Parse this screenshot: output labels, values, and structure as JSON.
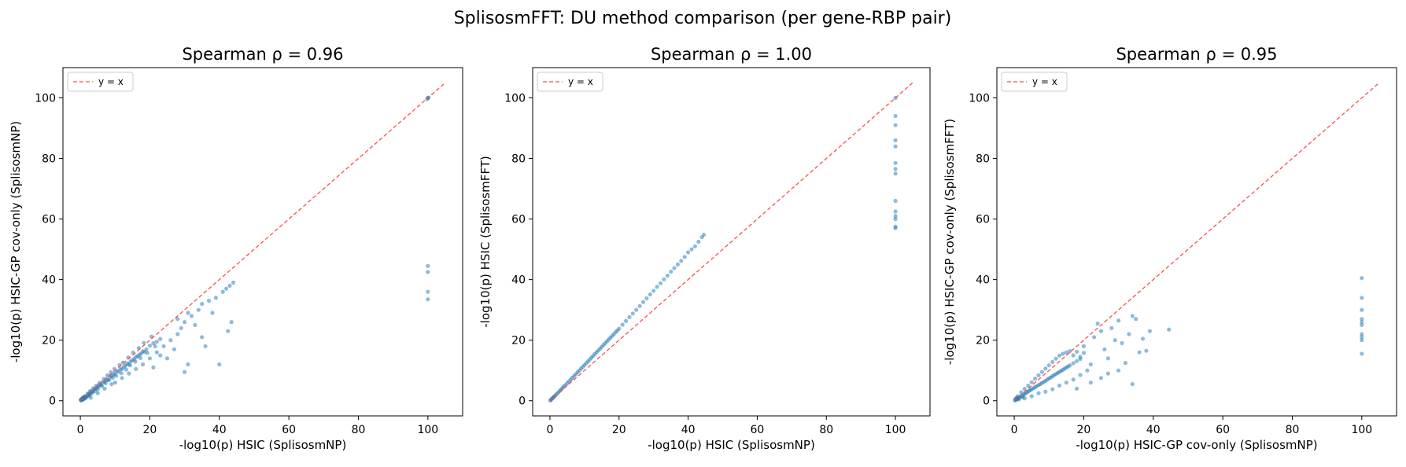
{
  "figure": {
    "suptitle": "SplisosmFFT: DU method comparison (per gene-RBP pair)"
  },
  "colors": {
    "points": "#1f77b4",
    "identity_line": "#ff4d4d",
    "axes": "#000000"
  },
  "chart_data": [
    {
      "type": "scatter",
      "title": "Spearman ρ = 0.96",
      "xlabel": "-log10(p)  HSIC (SplisosmNP)",
      "ylabel": "-log10(p)  HSIC-GP cov-only (SplisosmNP)",
      "xlim": [
        -5,
        110
      ],
      "ylim": [
        -5,
        110
      ],
      "xticks": [
        0,
        20,
        40,
        60,
        80,
        100
      ],
      "yticks": [
        0,
        20,
        40,
        60,
        80,
        100
      ],
      "legend": {
        "label": "y = x",
        "position": "upper-left"
      },
      "reference_line": {
        "from": [
          0,
          0
        ],
        "to": [
          105,
          105
        ]
      },
      "grid": false,
      "points": [
        [
          0.2,
          0.1
        ],
        [
          0.4,
          0.5
        ],
        [
          0.6,
          0.3
        ],
        [
          0.8,
          0.9
        ],
        [
          1.0,
          0.7
        ],
        [
          1.2,
          1.1
        ],
        [
          1.5,
          1.3
        ],
        [
          1.8,
          1.6
        ],
        [
          2.0,
          1.5
        ],
        [
          2.3,
          2.2
        ],
        [
          2.6,
          2.0
        ],
        [
          3.0,
          2.8
        ],
        [
          3.3,
          3.1
        ],
        [
          3.6,
          2.9
        ],
        [
          4.0,
          3.8
        ],
        [
          4.4,
          4.0
        ],
        [
          4.8,
          4.5
        ],
        [
          5.2,
          4.6
        ],
        [
          5.6,
          5.3
        ],
        [
          6.0,
          5.2
        ],
        [
          6.5,
          6.1
        ],
        [
          7.0,
          6.3
        ],
        [
          7.5,
          7.0
        ],
        [
          8.0,
          6.8
        ],
        [
          8.5,
          8.0
        ],
        [
          9.0,
          8.1
        ],
        [
          9.5,
          8.7
        ],
        [
          10.0,
          8.9
        ],
        [
          10.5,
          9.8
        ],
        [
          11.0,
          9.6
        ],
        [
          11.5,
          10.4
        ],
        [
          12.0,
          10.5
        ],
        [
          12.5,
          11.2
        ],
        [
          13.0,
          11.6
        ],
        [
          13.5,
          12.3
        ],
        [
          14.0,
          12.1
        ],
        [
          14.5,
          13.0
        ],
        [
          15.0,
          13.4
        ],
        [
          15.5,
          13.8
        ],
        [
          16.0,
          14.5
        ],
        [
          16.5,
          14.7
        ],
        [
          17.0,
          15.2
        ],
        [
          17.5,
          15.6
        ],
        [
          18.0,
          16.3
        ],
        [
          18.5,
          16.1
        ],
        [
          19.0,
          17.0
        ],
        [
          20.0,
          18.2
        ],
        [
          21.0,
          19.0
        ],
        [
          22.0,
          19.5
        ],
        [
          23.0,
          20.4
        ],
        [
          3.0,
          1.0
        ],
        [
          5.0,
          2.5
        ],
        [
          7.0,
          4.0
        ],
        [
          9.0,
          5.5
        ],
        [
          10.0,
          6.0
        ],
        [
          12.0,
          7.5
        ],
        [
          14.0,
          9.0
        ],
        [
          16.0,
          10.5
        ],
        [
          18.0,
          12.0
        ],
        [
          20.0,
          14.0
        ],
        [
          21.0,
          11.0
        ],
        [
          22.0,
          16.0
        ],
        [
          23.0,
          15.0
        ],
        [
          24.0,
          18.0
        ],
        [
          25.0,
          14.0
        ],
        [
          26.0,
          20.0
        ],
        [
          27.0,
          17.0
        ],
        [
          28.0,
          22.0
        ],
        [
          29.0,
          24.0
        ],
        [
          30.0,
          26.0
        ],
        [
          30.0,
          9.5
        ],
        [
          31.0,
          12.0
        ],
        [
          32.0,
          28.0
        ],
        [
          33.0,
          25.0
        ],
        [
          34.0,
          30.0
        ],
        [
          35.0,
          32.0
        ],
        [
          36.0,
          18.0
        ],
        [
          37.0,
          33.0
        ],
        [
          38.0,
          29.0
        ],
        [
          39.0,
          34.0
        ],
        [
          40.0,
          12.0
        ],
        [
          41.0,
          36.0
        ],
        [
          42.0,
          37.0
        ],
        [
          43.0,
          38.0
        ],
        [
          43.5,
          26.0
        ],
        [
          44.0,
          39.0
        ],
        [
          42.5,
          23.0
        ],
        [
          28.0,
          27.0
        ],
        [
          31.0,
          29.0
        ],
        [
          35.0,
          21.0
        ],
        [
          0.1,
          0.4
        ],
        [
          0.3,
          0.2
        ],
        [
          0.5,
          0.8
        ],
        [
          0.7,
          0.5
        ],
        [
          0.9,
          1.2
        ],
        [
          1.1,
          0.6
        ],
        [
          1.3,
          1.5
        ],
        [
          1.6,
          0.9
        ],
        [
          2.1,
          2.4
        ],
        [
          2.5,
          1.7
        ],
        [
          2.8,
          3.2
        ],
        [
          3.2,
          2.3
        ],
        [
          3.7,
          4.1
        ],
        [
          4.2,
          3.2
        ],
        [
          4.6,
          5.0
        ],
        [
          5.0,
          3.8
        ],
        [
          5.5,
          5.9
        ],
        [
          6.2,
          4.9
        ],
        [
          6.8,
          7.2
        ],
        [
          7.3,
          5.8
        ],
        [
          7.8,
          8.4
        ],
        [
          8.3,
          6.9
        ],
        [
          8.8,
          9.4
        ],
        [
          9.3,
          7.6
        ],
        [
          9.8,
          10.5
        ],
        [
          10.3,
          8.2
        ],
        [
          11.3,
          11.8
        ],
        [
          11.8,
          9.1
        ],
        [
          12.3,
          12.6
        ],
        [
          13.2,
          10.3
        ],
        [
          13.8,
          14.3
        ],
        [
          14.3,
          11.7
        ],
        [
          15.2,
          15.9
        ],
        [
          15.8,
          12.9
        ],
        [
          16.8,
          17.4
        ],
        [
          17.3,
          14.1
        ],
        [
          18.3,
          19.1
        ],
        [
          19.3,
          15.8
        ],
        [
          20.5,
          21.2
        ],
        [
          21.5,
          18.0
        ],
        [
          100,
          100
        ],
        [
          100,
          44.5
        ],
        [
          100,
          42.5
        ],
        [
          100,
          36.0
        ],
        [
          100,
          33.5
        ],
        [
          99.8,
          99.6
        ],
        [
          100.2,
          100.1
        ]
      ]
    },
    {
      "type": "scatter",
      "title": "Spearman ρ = 1.00",
      "xlabel": "-log10(p)  HSIC (SplisosmNP)",
      "ylabel": "-log10(p)  HSIC (SplisosmFFT)",
      "xlim": [
        -5,
        110
      ],
      "ylim": [
        -5,
        110
      ],
      "xticks": [
        0,
        20,
        40,
        60,
        80,
        100
      ],
      "yticks": [
        0,
        20,
        40,
        60,
        80,
        100
      ],
      "legend": {
        "label": "y = x",
        "position": "upper-left"
      },
      "reference_line": {
        "from": [
          0,
          0
        ],
        "to": [
          105,
          105
        ]
      },
      "grid": false,
      "points": [
        [
          0.1,
          0.1
        ],
        [
          0.3,
          0.3
        ],
        [
          0.5,
          0.6
        ],
        [
          0.8,
          0.9
        ],
        [
          1.0,
          1.1
        ],
        [
          1.3,
          1.5
        ],
        [
          1.6,
          1.8
        ],
        [
          2.0,
          2.3
        ],
        [
          2.4,
          2.7
        ],
        [
          2.8,
          3.2
        ],
        [
          3.2,
          3.7
        ],
        [
          3.6,
          4.2
        ],
        [
          4.0,
          4.7
        ],
        [
          4.5,
          5.2
        ],
        [
          5.0,
          5.8
        ],
        [
          5.5,
          6.4
        ],
        [
          6.0,
          7.0
        ],
        [
          6.5,
          7.6
        ],
        [
          7.0,
          8.2
        ],
        [
          7.5,
          8.8
        ],
        [
          8.0,
          9.4
        ],
        [
          8.5,
          10.0
        ],
        [
          9.0,
          10.6
        ],
        [
          9.5,
          11.2
        ],
        [
          10.0,
          11.8
        ],
        [
          10.5,
          12.4
        ],
        [
          11.0,
          13.0
        ],
        [
          11.5,
          13.6
        ],
        [
          12.0,
          14.2
        ],
        [
          12.5,
          14.8
        ],
        [
          13.0,
          15.4
        ],
        [
          13.5,
          16.0
        ],
        [
          14.0,
          16.6
        ],
        [
          14.5,
          17.2
        ],
        [
          15.0,
          17.8
        ],
        [
          15.5,
          18.4
        ],
        [
          16.0,
          19.0
        ],
        [
          16.5,
          19.6
        ],
        [
          17.0,
          20.2
        ],
        [
          17.5,
          20.8
        ],
        [
          18.0,
          21.4
        ],
        [
          18.5,
          22.0
        ],
        [
          19.0,
          22.6
        ],
        [
          19.5,
          23.2
        ],
        [
          20.0,
          23.8
        ],
        [
          21.0,
          25.1
        ],
        [
          22.0,
          26.3
        ],
        [
          23.0,
          27.6
        ],
        [
          24.0,
          28.8
        ],
        [
          25.0,
          30.0
        ],
        [
          26.0,
          31.3
        ],
        [
          27.0,
          32.6
        ],
        [
          28.0,
          33.8
        ],
        [
          29.0,
          35.1
        ],
        [
          30.0,
          36.3
        ],
        [
          31.0,
          37.6
        ],
        [
          32.0,
          38.8
        ],
        [
          33.0,
          40.1
        ],
        [
          34.0,
          41.3
        ],
        [
          35.0,
          42.6
        ],
        [
          36.0,
          43.8
        ],
        [
          37.0,
          45.0
        ],
        [
          38.0,
          46.2
        ],
        [
          39.0,
          47.5
        ],
        [
          40.0,
          49.0
        ],
        [
          41.0,
          50.0
        ],
        [
          42.0,
          51.0
        ],
        [
          43.0,
          52.5
        ],
        [
          44.0,
          54.0
        ],
        [
          44.5,
          54.8
        ],
        [
          100,
          100
        ],
        [
          100,
          94.0
        ],
        [
          100,
          91.0
        ],
        [
          100,
          86.0
        ],
        [
          100,
          84.0
        ],
        [
          100,
          78.5
        ],
        [
          100,
          76.5
        ],
        [
          100,
          75.0
        ],
        [
          100,
          66.0
        ],
        [
          100,
          62.5
        ],
        [
          100,
          61.0
        ],
        [
          100,
          60.0
        ],
        [
          100,
          57.5
        ],
        [
          100,
          57.0
        ]
      ]
    },
    {
      "type": "scatter",
      "title": "Spearman ρ = 0.95",
      "xlabel": "-log10(p)  HSIC-GP cov-only (SplisosmNP)",
      "ylabel": "-log10(p)  HSIC-GP cov-only (SplisosmFFT)",
      "xlim": [
        -5,
        110
      ],
      "ylim": [
        -5,
        110
      ],
      "xticks": [
        0,
        20,
        40,
        60,
        80,
        100
      ],
      "yticks": [
        0,
        20,
        40,
        60,
        80,
        100
      ],
      "legend": {
        "label": "y = x",
        "position": "upper-left"
      },
      "reference_line": {
        "from": [
          0,
          0
        ],
        "to": [
          105,
          105
        ]
      },
      "grid": false,
      "points": [
        [
          0.2,
          0.1
        ],
        [
          0.4,
          0.3
        ],
        [
          0.6,
          0.5
        ],
        [
          0.9,
          0.6
        ],
        [
          1.2,
          0.9
        ],
        [
          1.5,
          1.0
        ],
        [
          1.8,
          1.4
        ],
        [
          2.2,
          1.6
        ],
        [
          2.6,
          2.0
        ],
        [
          3.0,
          2.2
        ],
        [
          3.4,
          2.6
        ],
        [
          3.8,
          2.9
        ],
        [
          4.2,
          3.2
        ],
        [
          4.6,
          3.5
        ],
        [
          5.0,
          3.8
        ],
        [
          5.5,
          4.1
        ],
        [
          6.0,
          4.5
        ],
        [
          6.5,
          4.8
        ],
        [
          7.0,
          5.2
        ],
        [
          7.5,
          5.5
        ],
        [
          8.0,
          5.9
        ],
        [
          8.5,
          6.2
        ],
        [
          9.0,
          6.6
        ],
        [
          9.5,
          7.0
        ],
        [
          10.0,
          7.4
        ],
        [
          10.5,
          7.7
        ],
        [
          11.0,
          8.1
        ],
        [
          11.5,
          8.5
        ],
        [
          12.0,
          8.8
        ],
        [
          12.5,
          9.2
        ],
        [
          13.0,
          9.5
        ],
        [
          13.5,
          9.9
        ],
        [
          14.0,
          10.2
        ],
        [
          14.5,
          10.6
        ],
        [
          15.0,
          11.0
        ],
        [
          15.5,
          11.3
        ],
        [
          16.0,
          11.7
        ],
        [
          17.0,
          12.4
        ],
        [
          18.0,
          13.1
        ],
        [
          19.0,
          13.8
        ],
        [
          1.0,
          1.5
        ],
        [
          2.0,
          2.8
        ],
        [
          3.0,
          3.9
        ],
        [
          4.0,
          5.0
        ],
        [
          5.0,
          6.1
        ],
        [
          6.0,
          7.3
        ],
        [
          7.0,
          8.4
        ],
        [
          8.0,
          9.5
        ],
        [
          9.0,
          10.6
        ],
        [
          10.0,
          11.7
        ],
        [
          11.0,
          12.8
        ],
        [
          12.0,
          13.9
        ],
        [
          13.0,
          14.9
        ],
        [
          14.0,
          15.5
        ],
        [
          15.0,
          16.0
        ],
        [
          16.0,
          16.4
        ],
        [
          17.0,
          15.0
        ],
        [
          18.0,
          16.2
        ],
        [
          19.0,
          14.5
        ],
        [
          20.0,
          15.8
        ],
        [
          3.0,
          0.8
        ],
        [
          5.0,
          1.5
        ],
        [
          7.0,
          2.5
        ],
        [
          9.0,
          3.0
        ],
        [
          11.0,
          3.8
        ],
        [
          13.0,
          5.0
        ],
        [
          15.0,
          6.0
        ],
        [
          17.0,
          7.0
        ],
        [
          19.0,
          8.5
        ],
        [
          21.0,
          10.0
        ],
        [
          20.0,
          18.0
        ],
        [
          22.0,
          12.0
        ],
        [
          23.0,
          21.0
        ],
        [
          24.0,
          25.5
        ],
        [
          25.0,
          23.0
        ],
        [
          26.0,
          17.0
        ],
        [
          27.0,
          14.0
        ],
        [
          28.0,
          24.0
        ],
        [
          29.0,
          20.0
        ],
        [
          30.0,
          26.5
        ],
        [
          31.0,
          19.0
        ],
        [
          32.0,
          12.5
        ],
        [
          33.0,
          22.0
        ],
        [
          34.0,
          28.0
        ],
        [
          35.0,
          27.0
        ],
        [
          36.0,
          16.0
        ],
        [
          37.0,
          20.5
        ],
        [
          38.0,
          16.5
        ],
        [
          39.0,
          23.0
        ],
        [
          44.5,
          23.5
        ],
        [
          34.0,
          5.5
        ],
        [
          25.0,
          7.5
        ],
        [
          27.0,
          9.0
        ],
        [
          22.0,
          6.0
        ],
        [
          18.0,
          4.0
        ],
        [
          30.0,
          10.0
        ],
        [
          0.3,
          0.6
        ],
        [
          0.7,
          1.0
        ],
        [
          1.3,
          0.4
        ],
        [
          2.5,
          1.1
        ],
        [
          100,
          40.5
        ],
        [
          100,
          34.0
        ],
        [
          100,
          30.0
        ],
        [
          100,
          27.0
        ],
        [
          100,
          26.0
        ],
        [
          100,
          25.0
        ],
        [
          100,
          22.0
        ],
        [
          100,
          21.0
        ],
        [
          100,
          20.0
        ],
        [
          100,
          15.5
        ]
      ]
    }
  ]
}
